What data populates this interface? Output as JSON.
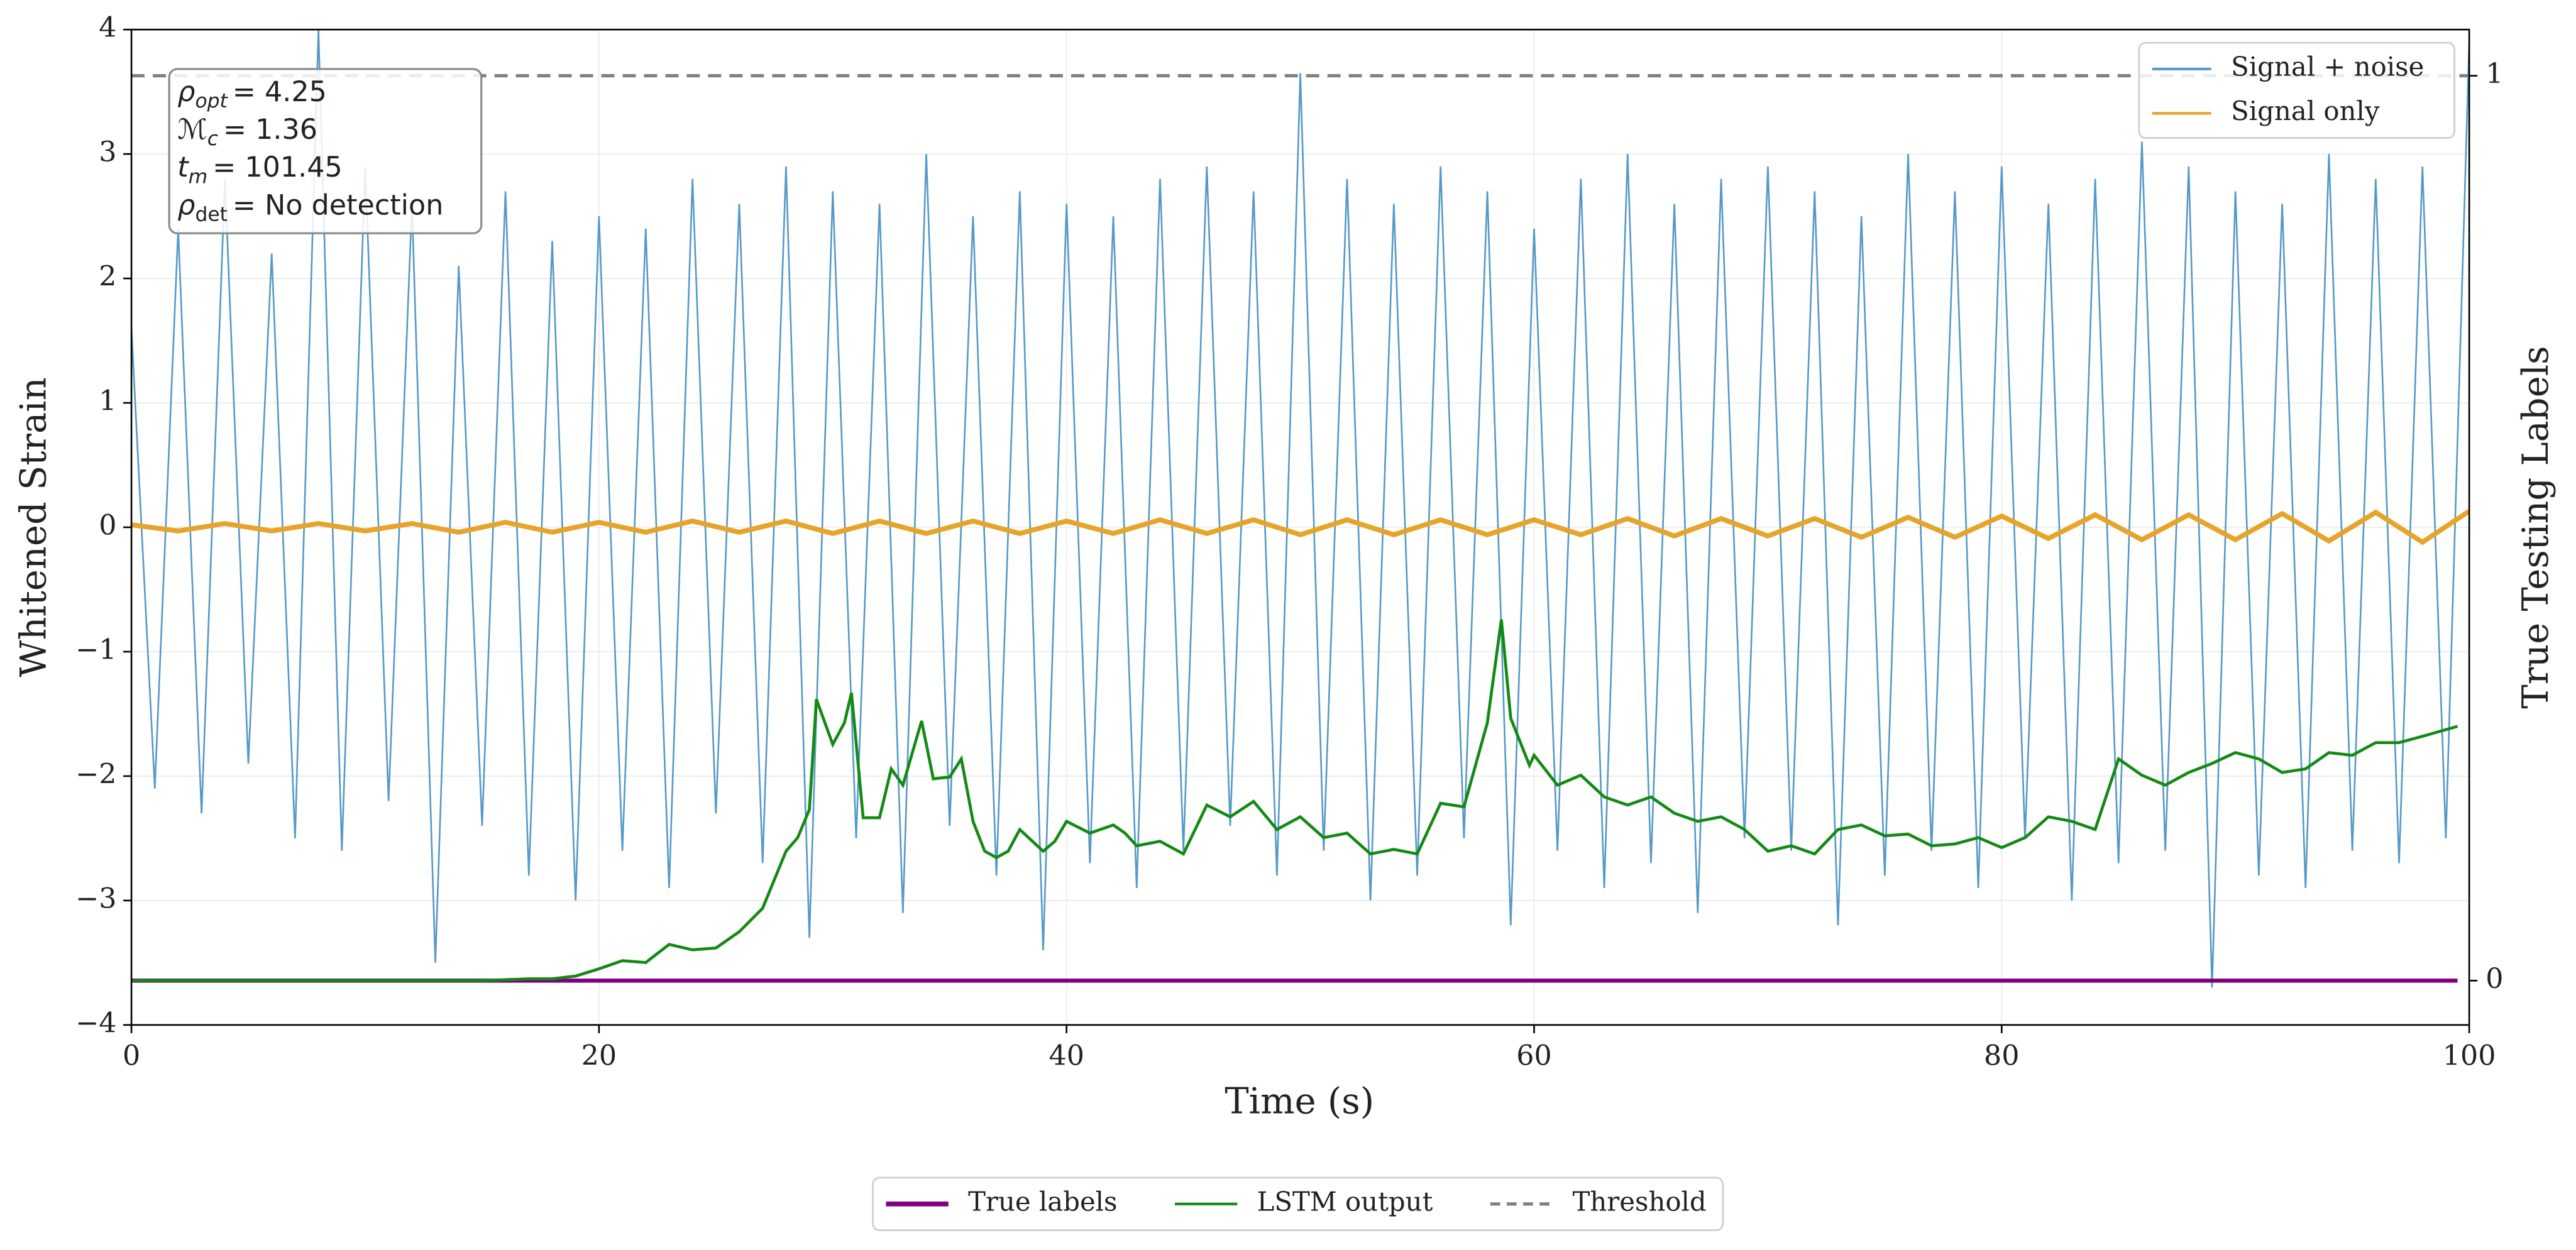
{
  "chart_data": {
    "type": "line",
    "xlabel": "Time (s)",
    "ylabel": "Whitened Strain",
    "y2label": "True Testing Labels",
    "xlim": [
      0,
      100
    ],
    "ylim": [
      -4,
      4
    ],
    "y2lim": [
      -0.049,
      1.051
    ],
    "xticks": [
      0,
      20,
      40,
      60,
      80,
      100
    ],
    "yticks": [
      {
        "value": -4,
        "label": "−4"
      },
      {
        "value": -3,
        "label": "−3"
      },
      {
        "value": -2,
        "label": "−2"
      },
      {
        "value": -1,
        "label": "−1"
      },
      0,
      1,
      2,
      3,
      4
    ],
    "y2ticks": [
      0,
      1
    ],
    "grid": true,
    "threshold": {
      "name": "Threshold",
      "value": 1,
      "color": "#808080",
      "axis": "y2",
      "legend": "lower center outside"
    },
    "annotations": [
      {
        "symbol": "ρ",
        "sub": "opt",
        "text": "= 4.25"
      },
      {
        "symbol": "ℳ",
        "sub": "c",
        "text": "= 1.36"
      },
      {
        "symbol": "t",
        "sub": "m",
        "text": "= 101.45"
      },
      {
        "symbol": "ρ",
        "sub": "det",
        "text": "= No detection"
      }
    ],
    "series": [
      {
        "name": "Signal + noise",
        "color": "#5599c7",
        "legend": "upper right",
        "x": [
          0,
          1,
          2,
          3,
          4,
          5,
          6,
          7,
          8,
          9,
          10,
          11,
          12,
          13,
          14,
          15,
          16,
          17,
          18,
          19,
          20,
          21,
          22,
          23,
          24,
          25,
          26,
          27,
          28,
          29,
          30,
          31,
          32,
          33,
          34,
          35,
          36,
          37,
          38,
          39,
          40,
          41,
          42,
          43,
          44,
          45,
          46,
          47,
          48,
          49,
          50,
          51,
          52,
          53,
          54,
          55,
          56,
          57,
          58,
          59,
          60,
          61,
          62,
          63,
          64,
          65,
          66,
          67,
          68,
          69,
          70,
          71,
          72,
          73,
          74,
          75,
          76,
          77,
          78,
          79,
          80,
          81,
          82,
          83,
          84,
          85,
          86,
          87,
          88,
          89,
          90,
          91,
          92,
          93,
          94,
          95,
          96,
          97,
          98,
          99,
          100
        ],
        "values": [
          1.6,
          -2.1,
          2.4,
          -2.3,
          2.8,
          -1.9,
          2.2,
          -2.5,
          4.0,
          -2.6,
          2.9,
          -2.2,
          2.6,
          -3.5,
          2.1,
          -2.4,
          2.7,
          -2.8,
          2.3,
          -3.0,
          2.5,
          -2.6,
          2.4,
          -2.9,
          2.8,
          -2.3,
          2.6,
          -2.7,
          2.9,
          -3.3,
          2.7,
          -2.5,
          2.6,
          -3.1,
          3.0,
          -2.4,
          2.5,
          -2.8,
          2.7,
          -3.4,
          2.6,
          -2.7,
          2.5,
          -2.9,
          2.8,
          -2.6,
          2.9,
          -2.4,
          2.7,
          -2.8,
          3.65,
          -2.6,
          2.8,
          -3.0,
          2.6,
          -2.8,
          2.9,
          -2.5,
          2.7,
          -3.2,
          2.4,
          -2.6,
          2.8,
          -2.9,
          3.0,
          -2.7,
          2.6,
          -3.1,
          2.8,
          -2.5,
          2.9,
          -2.6,
          2.7,
          -3.2,
          2.5,
          -2.8,
          3.0,
          -2.6,
          2.7,
          -2.9,
          2.9,
          -2.5,
          2.6,
          -3.0,
          2.8,
          -2.7,
          3.1,
          -2.6,
          2.9,
          -3.7,
          2.7,
          -2.8,
          2.6,
          -2.9,
          3.0,
          -2.6,
          2.8,
          -2.7,
          2.9,
          -2.5,
          3.9
        ]
      },
      {
        "name": "Signal only",
        "color": "#e6a42a",
        "legend": "upper right",
        "x": [
          0,
          2,
          4,
          6,
          8,
          10,
          12,
          14,
          16,
          18,
          20,
          22,
          24,
          26,
          28,
          30,
          32,
          34,
          36,
          38,
          40,
          42,
          44,
          46,
          48,
          50,
          52,
          54,
          56,
          58,
          60,
          62,
          64,
          66,
          68,
          70,
          72,
          74,
          76,
          78,
          80,
          82,
          84,
          86,
          88,
          90,
          92,
          94,
          96,
          98,
          100
        ],
        "values": [
          0.02,
          -0.03,
          0.03,
          -0.03,
          0.03,
          -0.03,
          0.03,
          -0.04,
          0.04,
          -0.04,
          0.04,
          -0.04,
          0.05,
          -0.04,
          0.05,
          -0.05,
          0.05,
          -0.05,
          0.05,
          -0.05,
          0.05,
          -0.05,
          0.06,
          -0.05,
          0.06,
          -0.06,
          0.06,
          -0.06,
          0.06,
          -0.06,
          0.06,
          -0.06,
          0.07,
          -0.07,
          0.07,
          -0.07,
          0.07,
          -0.08,
          0.08,
          -0.08,
          0.09,
          -0.09,
          0.1,
          -0.1,
          0.1,
          -0.1,
          0.11,
          -0.11,
          0.12,
          -0.12,
          0.13
        ]
      },
      {
        "name": "True labels",
        "color": "#800080",
        "axis": "y2",
        "legend": "lower center outside",
        "x": [
          0,
          99.5
        ],
        "values": [
          0,
          0
        ]
      },
      {
        "name": "LSTM output",
        "color": "#138a13",
        "axis": "y2",
        "legend": "lower center outside",
        "x": [
          0,
          15,
          17,
          18,
          19,
          20,
          21,
          22,
          23,
          24,
          25,
          26,
          27,
          28,
          28.5,
          29,
          29.3,
          30,
          30.5,
          30.8,
          31.3,
          32,
          32.5,
          33,
          33.8,
          34.3,
          35,
          35.5,
          36,
          36.5,
          37,
          37.5,
          38,
          39,
          39.5,
          40,
          41,
          42,
          42.5,
          43,
          44,
          45,
          46,
          47,
          48,
          49,
          50,
          51,
          52,
          53,
          54,
          55,
          56,
          57,
          58,
          58.6,
          59,
          59.8,
          60,
          61,
          62,
          63,
          64,
          65,
          66,
          67,
          68,
          69,
          70,
          71,
          72,
          73,
          74,
          75,
          76,
          77,
          78,
          79,
          80,
          81,
          82,
          83,
          84,
          85,
          86,
          87,
          88,
          89,
          90,
          91,
          92,
          93,
          94,
          95,
          96,
          97,
          98,
          99.5
        ],
        "values": [
          0,
          0,
          0.002,
          0.002,
          0.005,
          0.013,
          0.022,
          0.02,
          0.04,
          0.034,
          0.036,
          0.054,
          0.08,
          0.143,
          0.158,
          0.189,
          0.311,
          0.261,
          0.285,
          0.318,
          0.18,
          0.18,
          0.234,
          0.216,
          0.287,
          0.223,
          0.225,
          0.245,
          0.176,
          0.143,
          0.136,
          0.143,
          0.167,
          0.143,
          0.154,
          0.176,
          0.163,
          0.172,
          0.163,
          0.149,
          0.154,
          0.14,
          0.194,
          0.181,
          0.198,
          0.167,
          0.181,
          0.158,
          0.163,
          0.14,
          0.145,
          0.14,
          0.196,
          0.192,
          0.285,
          0.399,
          0.29,
          0.238,
          0.249,
          0.216,
          0.227,
          0.203,
          0.194,
          0.203,
          0.185,
          0.176,
          0.181,
          0.167,
          0.143,
          0.149,
          0.14,
          0.167,
          0.172,
          0.16,
          0.162,
          0.149,
          0.151,
          0.158,
          0.147,
          0.158,
          0.181,
          0.176,
          0.167,
          0.245,
          0.227,
          0.216,
          0.23,
          0.24,
          0.252,
          0.245,
          0.23,
          0.234,
          0.252,
          0.249,
          0.263,
          0.263,
          0.27,
          0.281
        ]
      }
    ]
  }
}
